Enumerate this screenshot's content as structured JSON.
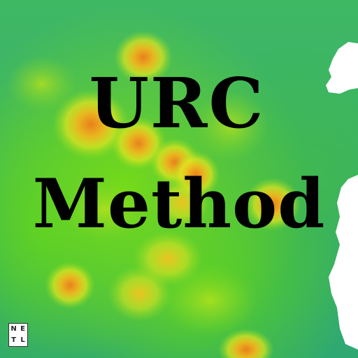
{
  "title": {
    "line1": "URC",
    "line2": "Method"
  },
  "logo": {
    "letters": [
      "N",
      "E",
      "T",
      "L"
    ]
  },
  "colors": {
    "base_teal": "#2aa673",
    "green": "#4fd03a",
    "yellow": "#e6e620",
    "orange": "#e98a1e",
    "blank": "#ffffff"
  },
  "map": {
    "layer": "heatmap",
    "legend": "none"
  }
}
